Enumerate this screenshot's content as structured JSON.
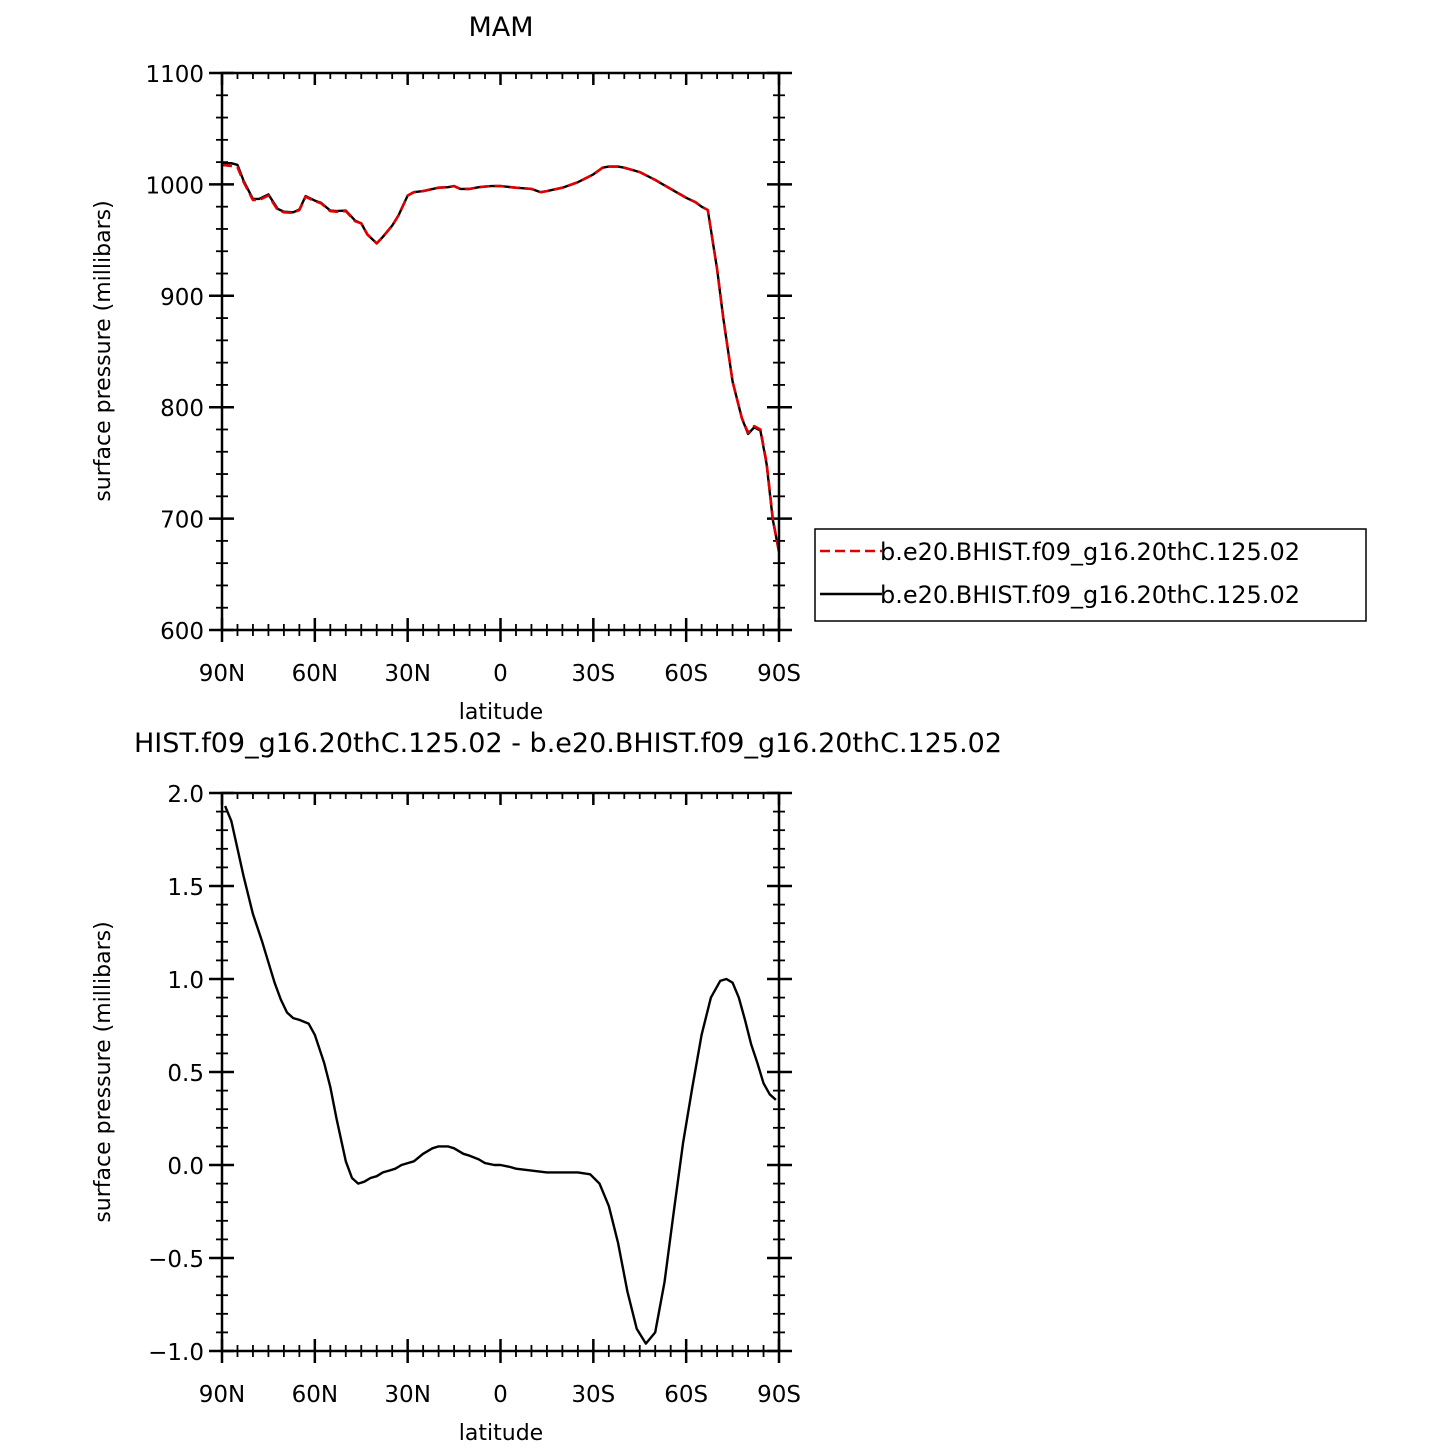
{
  "chart_data": [
    {
      "type": "line",
      "title": "MAM",
      "xlabel": "latitude",
      "ylabel": "surface pressure (millibars)",
      "xlim": [
        90,
        -90
      ],
      "ylim": [
        600,
        1100
      ],
      "x_tick_values": [
        90,
        60,
        30,
        0,
        -30,
        -60,
        -90
      ],
      "x_tick_labels": [
        "90N",
        "60N",
        "30N",
        "0",
        "30S",
        "60S",
        "90S"
      ],
      "y_tick_values": [
        600,
        700,
        800,
        900,
        1000,
        1100
      ],
      "y_tick_labels": [
        "600",
        "700",
        "800",
        "900",
        "1000",
        "1100"
      ],
      "grid": false,
      "legend_position": "right",
      "series": [
        {
          "name": "b.e20.BHIST.f09_g16.20thC.125.02",
          "color": "#e00000",
          "dash": "dashed",
          "x": [
            90,
            87,
            85,
            83,
            80,
            78,
            75,
            72,
            70,
            67,
            65,
            63,
            60,
            58,
            55,
            53,
            50,
            47,
            45,
            43,
            40,
            38,
            35,
            33,
            30,
            28,
            25,
            20,
            17,
            15,
            13,
            10,
            7,
            5,
            3,
            0,
            -5,
            -10,
            -13,
            -15,
            -20,
            -25,
            -30,
            -33,
            -35,
            -38,
            -40,
            -45,
            -50,
            -55,
            -60,
            -63,
            -65,
            -67,
            -70,
            -72,
            -75,
            -78,
            -80,
            -82,
            -84,
            -86,
            -88,
            -90
          ],
          "y": [
            1017.5,
            1016.5,
            1015.5,
            1002,
            986,
            986,
            990,
            977,
            975,
            974.5,
            977,
            989,
            985,
            983,
            976,
            975.5,
            976,
            967,
            965,
            955,
            947,
            953,
            963,
            972,
            990,
            993,
            994,
            997,
            997.5,
            998.5,
            996,
            996,
            997.5,
            998,
            998.5,
            998.5,
            997,
            996,
            993,
            994,
            997,
            1002,
            1009,
            1015,
            1016,
            1016,
            1015,
            1011,
            1004,
            996,
            988,
            984,
            980,
            977,
            924,
            880,
            823,
            790,
            777,
            783,
            780,
            750,
            700,
            670
          ]
        },
        {
          "name": "b.e20.BHIST.f09_g16.20thC.125.02",
          "color": "#000000",
          "dash": "solid",
          "x": [
            90,
            87,
            85,
            83,
            80,
            78,
            75,
            72,
            70,
            67,
            65,
            63,
            60,
            58,
            55,
            53,
            50,
            47,
            45,
            43,
            40,
            38,
            35,
            33,
            30,
            28,
            25,
            20,
            17,
            15,
            13,
            10,
            7,
            5,
            3,
            0,
            -5,
            -10,
            -13,
            -15,
            -20,
            -25,
            -30,
            -33,
            -35,
            -38,
            -40,
            -45,
            -50,
            -55,
            -60,
            -63,
            -65,
            -67,
            -70,
            -72,
            -75,
            -78,
            -80,
            -82,
            -84,
            -86,
            -88,
            -90
          ],
          "y": [
            1019,
            1019,
            1017.5,
            1003,
            987,
            987,
            991,
            978,
            975.5,
            975,
            977.5,
            989.5,
            985.5,
            983.5,
            976.5,
            976,
            976.5,
            967.5,
            965,
            955,
            947,
            953,
            963,
            972,
            990,
            993,
            994,
            997,
            997.5,
            998.5,
            996,
            996,
            997.5,
            998,
            998.5,
            998.5,
            997,
            996,
            993,
            994,
            997,
            1002,
            1009,
            1015,
            1016,
            1016,
            1015,
            1011,
            1004,
            996,
            988,
            984,
            980,
            977,
            924,
            880,
            823,
            790,
            776,
            782,
            779,
            749,
            699,
            670
          ]
        }
      ]
    },
    {
      "type": "line",
      "title": "HIST.f09_g16.20thC.125.02 - b.e20.BHIST.f09_g16.20thC.125.02",
      "xlabel": "latitude",
      "ylabel": "surface pressure (millibars)",
      "xlim": [
        90,
        -90
      ],
      "ylim": [
        -1.0,
        2.0
      ],
      "x_tick_values": [
        90,
        60,
        30,
        0,
        -30,
        -60,
        -90
      ],
      "x_tick_labels": [
        "90N",
        "60N",
        "30N",
        "0",
        "30S",
        "60S",
        "90S"
      ],
      "y_tick_values": [
        -1.0,
        -0.5,
        0.0,
        0.5,
        1.0,
        1.5,
        2.0
      ],
      "y_tick_labels": [
        "−1.0",
        "−0.5",
        "0.0",
        "0.5",
        "1.0",
        "1.5",
        "2.0"
      ],
      "grid": false,
      "series": [
        {
          "name": "",
          "color": "#000000",
          "dash": "solid",
          "x": [
            89,
            87,
            85,
            83,
            80,
            77,
            75,
            73,
            71,
            69,
            67,
            65,
            62,
            60,
            57,
            55,
            53,
            50,
            48,
            46,
            44,
            42,
            40,
            38,
            36,
            34,
            32,
            30,
            28,
            25,
            22,
            20,
            17,
            15,
            12,
            10,
            7,
            5,
            2,
            0,
            -3,
            -5,
            -10,
            -15,
            -20,
            -25,
            -29,
            -32,
            -35,
            -38,
            -41,
            -44,
            -47,
            -50,
            -53,
            -56,
            -59,
            -62,
            -65,
            -68,
            -71,
            -73,
            -75,
            -77,
            -79,
            -81,
            -83,
            -85,
            -87,
            -89
          ],
          "y": [
            1.93,
            1.85,
            1.7,
            1.55,
            1.35,
            1.2,
            1.09,
            0.98,
            0.89,
            0.82,
            0.79,
            0.78,
            0.76,
            0.7,
            0.55,
            0.42,
            0.25,
            0.02,
            -0.07,
            -0.1,
            -0.09,
            -0.07,
            -0.06,
            -0.04,
            -0.03,
            -0.02,
            0.0,
            0.01,
            0.02,
            0.06,
            0.09,
            0.1,
            0.1,
            0.09,
            0.06,
            0.05,
            0.03,
            0.01,
            0.0,
            0.0,
            -0.01,
            -0.02,
            -0.03,
            -0.04,
            -0.04,
            -0.04,
            -0.05,
            -0.1,
            -0.22,
            -0.42,
            -0.68,
            -0.88,
            -0.96,
            -0.9,
            -0.63,
            -0.25,
            0.12,
            0.42,
            0.7,
            0.9,
            0.99,
            1.0,
            0.98,
            0.9,
            0.78,
            0.65,
            0.55,
            0.44,
            0.38,
            0.35
          ]
        }
      ]
    }
  ]
}
